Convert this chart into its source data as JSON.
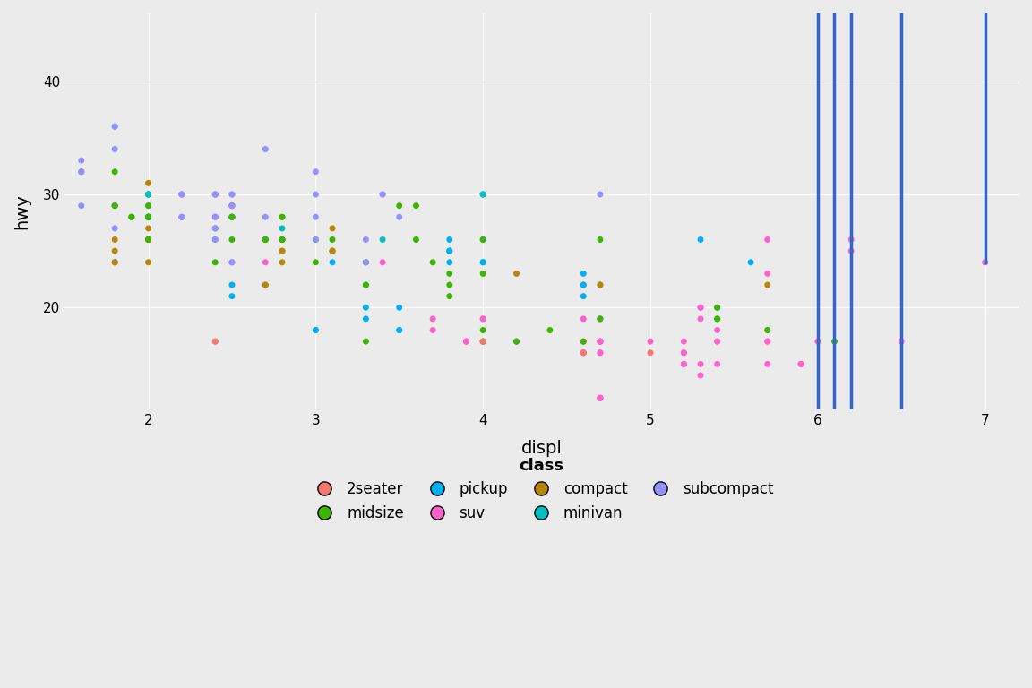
{
  "title": "",
  "xlabel": "displ",
  "ylabel": "hwy",
  "background_color": "#EBEBEB",
  "grid_color": "#FFFFFF",
  "smooth_color": "#3366CC",
  "smooth_linewidth": 2.5,
  "point_size": 25,
  "legend_point_size": 120,
  "xlim": [
    1.5,
    7.2
  ],
  "ylim": [
    11,
    46
  ],
  "xticks": [
    2,
    3,
    4,
    5,
    6,
    7
  ],
  "yticks": [
    20,
    30,
    40
  ],
  "class_colors": {
    "2seater": "#F8766D",
    "compact": "#B8860B",
    "midsize": "#39B600",
    "minivan": "#00BFC4",
    "pickup": "#00B0F6",
    "subcompact": "#9590FF",
    "suv": "#FF61CC"
  },
  "legend_order_row1": [
    "2seater",
    "midsize",
    "pickup",
    "suv"
  ],
  "legend_order_row2": [
    "compact",
    "minivan",
    "subcompact"
  ],
  "displ": [
    1.8,
    1.8,
    2.0,
    2.0,
    2.8,
    2.8,
    3.1,
    1.8,
    1.8,
    2.0,
    2.0,
    2.8,
    2.8,
    3.1,
    3.1,
    2.8,
    3.1,
    4.2,
    5.3,
    5.3,
    5.3,
    5.7,
    6.0,
    5.7,
    5.7,
    6.2,
    6.2,
    7.0,
    5.3,
    5.3,
    5.7,
    6.5,
    2.4,
    2.4,
    3.1,
    3.5,
    3.6,
    2.4,
    3.0,
    3.3,
    3.3,
    3.3,
    3.3,
    3.3,
    3.8,
    3.8,
    3.8,
    4.0,
    3.7,
    3.7,
    3.9,
    3.9,
    4.7,
    4.7,
    4.7,
    5.2,
    5.2,
    3.9,
    4.7,
    4.7,
    4.7,
    5.2,
    5.7,
    5.9,
    4.7,
    4.7,
    4.7,
    4.7,
    4.7,
    4.7,
    5.2,
    5.2,
    5.7,
    5.9,
    4.6,
    5.4,
    5.4,
    4.0,
    4.0,
    4.0,
    4.0,
    4.6,
    5.0,
    4.2,
    4.2,
    4.6,
    4.6,
    4.6,
    5.4,
    5.4,
    3.8,
    3.8,
    4.0,
    4.0,
    4.6,
    4.6,
    4.6,
    4.6,
    5.4,
    1.6,
    1.6,
    1.6,
    1.6,
    1.6,
    1.8,
    1.8,
    1.8,
    2.0,
    2.4,
    2.4,
    2.4,
    2.4,
    2.5,
    2.5,
    3.3,
    2.0,
    2.0,
    2.0,
    2.0,
    2.7,
    2.7,
    2.7,
    3.0,
    3.7,
    4.0,
    4.7,
    4.7,
    4.7,
    5.7,
    6.1,
    4.0,
    4.2,
    4.4,
    4.6,
    5.4,
    5.4,
    5.4,
    4.0,
    4.0,
    4.6,
    5.0,
    2.4,
    2.4,
    2.5,
    2.5,
    3.5,
    3.5,
    3.0,
    3.0,
    3.5,
    3.3,
    3.3,
    4.0,
    5.6,
    3.1,
    3.8,
    3.8,
    3.8,
    5.3,
    2.5,
    2.5,
    2.5,
    2.5,
    2.5,
    2.5,
    2.2,
    2.2,
    2.5,
    2.5,
    2.5,
    2.5,
    2.5,
    2.5,
    2.7,
    2.7,
    3.4,
    3.4,
    4.0,
    4.7,
    2.2,
    2.2,
    2.4,
    2.4,
    3.0,
    3.0,
    3.5,
    2.2,
    2.2,
    2.4,
    2.4,
    3.0,
    3.0,
    3.3,
    1.8,
    1.8,
    1.8,
    1.8,
    1.8,
    4.7,
    5.7,
    2.7,
    2.7,
    2.7,
    3.4,
    3.4,
    4.0,
    4.0,
    2.0,
    2.0,
    2.0,
    2.0,
    2.8,
    1.9,
    2.0,
    2.0,
    2.0,
    2.0,
    2.5,
    2.5,
    2.8,
    2.8,
    1.9,
    1.9,
    2.0,
    2.0,
    2.5,
    1.8,
    1.8,
    2.0,
    2.0,
    2.8,
    2.8,
    3.6
  ],
  "hwy": [
    29,
    29,
    31,
    30,
    26,
    26,
    27,
    26,
    25,
    28,
    27,
    25,
    25,
    25,
    25,
    24,
    25,
    23,
    20,
    15,
    20,
    17,
    17,
    26,
    23,
    26,
    25,
    24,
    19,
    14,
    15,
    17,
    27,
    30,
    26,
    29,
    26,
    24,
    24,
    22,
    22,
    24,
    24,
    17,
    22,
    21,
    23,
    23,
    19,
    18,
    17,
    17,
    19,
    19,
    12,
    17,
    15,
    17,
    17,
    12,
    17,
    16,
    18,
    15,
    16,
    12,
    17,
    17,
    16,
    12,
    15,
    16,
    17,
    15,
    17,
    17,
    18,
    17,
    19,
    17,
    19,
    19,
    17,
    17,
    17,
    16,
    16,
    17,
    15,
    17,
    26,
    25,
    26,
    24,
    21,
    22,
    23,
    22,
    20,
    33,
    32,
    32,
    29,
    32,
    34,
    36,
    36,
    29,
    26,
    27,
    28,
    26,
    24,
    24,
    24,
    24,
    26,
    26,
    26,
    26,
    26,
    26,
    26,
    24,
    26,
    26,
    22,
    19,
    18,
    17,
    18,
    17,
    18,
    17,
    19,
    19,
    20,
    17,
    17,
    16,
    16,
    17,
    17,
    22,
    21,
    20,
    18,
    18,
    18,
    18,
    19,
    20,
    24,
    24,
    24,
    24,
    25,
    25,
    26,
    29,
    29,
    29,
    29,
    29,
    28,
    30,
    28,
    28,
    28,
    28,
    30,
    28,
    30,
    28,
    34,
    30,
    30,
    30,
    30,
    30,
    30,
    30,
    30,
    30,
    32,
    28,
    28,
    28,
    28,
    28,
    28,
    26,
    26,
    29,
    27,
    24,
    24,
    24,
    22,
    22,
    22,
    22,
    24,
    24,
    26,
    30,
    30,
    30,
    30,
    30,
    28,
    27,
    28,
    28,
    28,
    28,
    28,
    28,
    26,
    28,
    28,
    28,
    28,
    28,
    28,
    28,
    29,
    32,
    29,
    26,
    26,
    26,
    29,
    29,
    29,
    29,
    28,
    28,
    26,
    26
  ],
  "class": [
    "compact",
    "compact",
    "compact",
    "compact",
    "compact",
    "compact",
    "compact",
    "compact",
    "compact",
    "compact",
    "compact",
    "compact",
    "compact",
    "compact",
    "compact",
    "compact",
    "compact",
    "compact",
    "suv",
    "suv",
    "suv",
    "suv",
    "suv",
    "suv",
    "suv",
    "suv",
    "suv",
    "suv",
    "suv",
    "suv",
    "suv",
    "suv",
    "midsize",
    "midsize",
    "midsize",
    "midsize",
    "midsize",
    "midsize",
    "midsize",
    "midsize",
    "midsize",
    "midsize",
    "midsize",
    "midsize",
    "midsize",
    "midsize",
    "midsize",
    "midsize",
    "suv",
    "suv",
    "suv",
    "suv",
    "suv",
    "suv",
    "suv",
    "suv",
    "suv",
    "suv",
    "suv",
    "suv",
    "suv",
    "suv",
    "suv",
    "suv",
    "suv",
    "suv",
    "suv",
    "suv",
    "suv",
    "suv",
    "suv",
    "suv",
    "suv",
    "suv",
    "suv",
    "suv",
    "suv",
    "suv",
    "suv",
    "suv",
    "suv",
    "suv",
    "suv",
    "suv",
    "suv",
    "suv",
    "suv",
    "suv",
    "suv",
    "suv",
    "pickup",
    "pickup",
    "pickup",
    "pickup",
    "pickup",
    "pickup",
    "pickup",
    "pickup",
    "pickup",
    "subcompact",
    "subcompact",
    "subcompact",
    "subcompact",
    "subcompact",
    "subcompact",
    "subcompact",
    "subcompact",
    "subcompact",
    "subcompact",
    "subcompact",
    "subcompact",
    "subcompact",
    "subcompact",
    "subcompact",
    "subcompact",
    "compact",
    "compact",
    "compact",
    "compact",
    "midsize",
    "midsize",
    "midsize",
    "midsize",
    "midsize",
    "midsize",
    "midsize",
    "midsize",
    "midsize",
    "midsize",
    "midsize",
    "midsize",
    "midsize",
    "midsize",
    "midsize",
    "midsize",
    "midsize",
    "midsize",
    "midsize",
    "2seater",
    "2seater",
    "2seater",
    "2seater",
    "2seater",
    "pickup",
    "pickup",
    "pickup",
    "pickup",
    "pickup",
    "pickup",
    "pickup",
    "pickup",
    "pickup",
    "pickup",
    "pickup",
    "pickup",
    "pickup",
    "pickup",
    "pickup",
    "pickup",
    "subcompact",
    "subcompact",
    "subcompact",
    "subcompact",
    "subcompact",
    "subcompact",
    "subcompact",
    "subcompact",
    "subcompact",
    "subcompact",
    "subcompact",
    "subcompact",
    "subcompact",
    "subcompact",
    "subcompact",
    "subcompact",
    "subcompact",
    "subcompact",
    "subcompact",
    "subcompact",
    "subcompact",
    "subcompact",
    "subcompact",
    "subcompact",
    "subcompact",
    "subcompact",
    "subcompact",
    "subcompact",
    "subcompact",
    "subcompact",
    "subcompact",
    "subcompact",
    "subcompact",
    "subcompact",
    "subcompact",
    "subcompact",
    "subcompact",
    "subcompact",
    "compact",
    "compact",
    "compact",
    "compact",
    "compact",
    "suv",
    "suv",
    "minivan",
    "minivan",
    "minivan",
    "minivan",
    "minivan",
    "minivan",
    "minivan",
    "minivan",
    "minivan",
    "minivan",
    "minivan",
    "minivan",
    "minivan",
    "midsize",
    "midsize",
    "midsize",
    "midsize",
    "midsize",
    "midsize",
    "midsize",
    "midsize",
    "midsize",
    "midsize",
    "midsize",
    "midsize",
    "midsize",
    "midsize",
    "midsize",
    "midsize",
    "midsize",
    "compact",
    "compact",
    "compact",
    "compact",
    "compact",
    "compact",
    "compact"
  ]
}
